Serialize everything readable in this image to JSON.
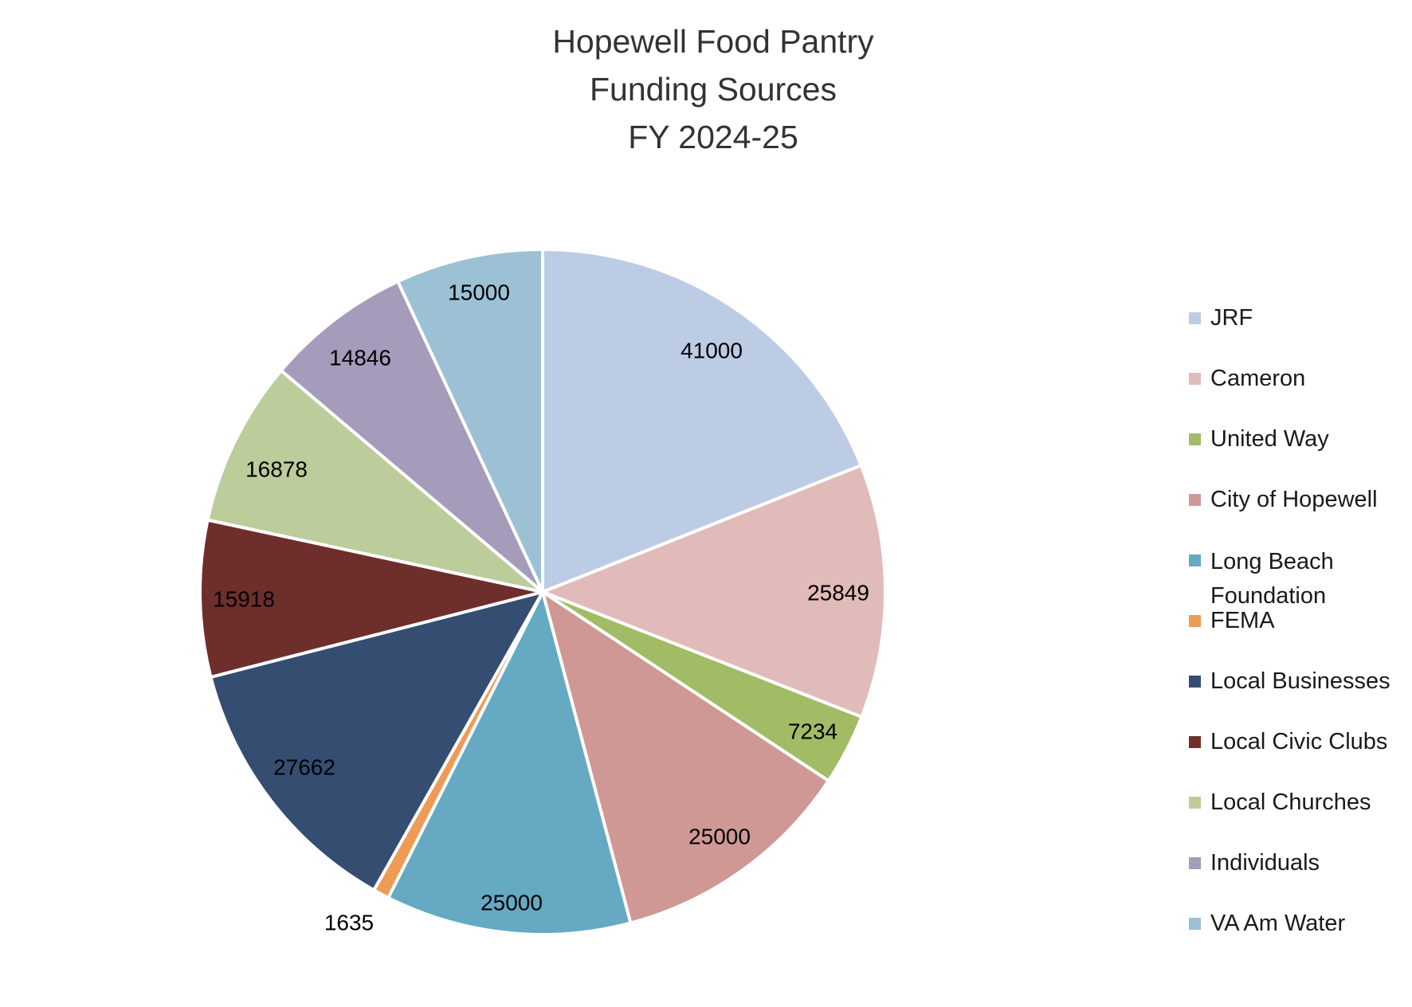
{
  "chart_data": {
    "type": "pie",
    "title_lines": [
      "Hopewell Food Pantry",
      "Funding Sources",
      "FY 2024-25"
    ],
    "categories": [
      "JRF",
      "Cameron",
      "United Way",
      "City of Hopewell",
      "Long Beach Foundation",
      "FEMA",
      "Local Businesses",
      "Local Civic Clubs",
      "Local Churches",
      "Individuals",
      "VA Am Water"
    ],
    "values": [
      41000,
      25849,
      7234,
      25000,
      25000,
      1635,
      27662,
      15918,
      16878,
      14846,
      15000
    ],
    "data_labels": [
      "41000",
      "25849",
      "7234",
      "25000",
      "25000",
      "1635",
      "27662",
      "15918",
      "16878",
      "14846",
      "15000"
    ],
    "colors": [
      "#bccce4",
      "#e0bbb9",
      "#a2bb65",
      "#cf9894",
      "#65a9c3",
      "#ee9b56",
      "#344d71",
      "#6e2f2c",
      "#bccc9b",
      "#a59bba",
      "#9cc1d4"
    ],
    "legend_position": "right",
    "start_angle": "12 o'clock",
    "direction": "clockwise"
  },
  "legend": {
    "items": [
      "JRF",
      "Cameron",
      "United Way",
      "City of Hopewell",
      "Long Beach Foundation",
      "FEMA",
      "Local Businesses",
      "Local Civic Clubs",
      "Local Churches",
      "Individuals",
      "VA Am Water"
    ]
  }
}
